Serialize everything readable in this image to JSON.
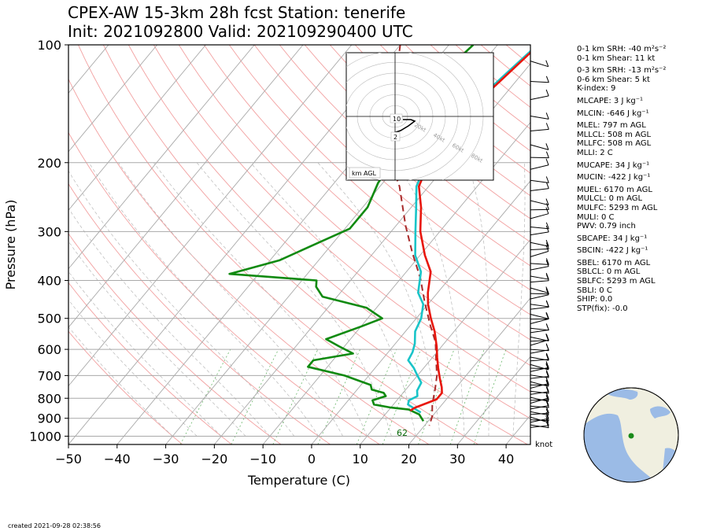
{
  "title_line1": "CPEX-AW 15-3km  28h fcst  Station: tenerife",
  "title_line2": "Init: 2021092800  Valid: 202109290400 UTC",
  "created": "created 2021-09-28 02:38:56",
  "barb_unit": "knot",
  "hodograph": {
    "rings": [
      "20kt",
      "40kt",
      "60kt",
      "80kt"
    ],
    "height_labels": [
      "10",
      "2"
    ],
    "legend": "km AGL"
  },
  "indices": [
    {
      "text": "0-1 km SRH: -40 m²s⁻²",
      "gap": false
    },
    {
      "text": "0-1 km Shear: 11 kt",
      "gap": false
    },
    {
      "text": "0-3 km SRH: -13 m²s⁻²",
      "gap": true
    },
    {
      "text": "0-6 km Shear: 5 kt",
      "gap": false
    },
    {
      "text": "K-index: 9",
      "gap": false
    },
    {
      "text": "MLCAPE: 3 J kg⁻¹",
      "gap": true
    },
    {
      "text": "MLCIN: -646 J kg⁻¹",
      "gap": true
    },
    {
      "text": "MLEL: 797 m AGL",
      "gap": true
    },
    {
      "text": "MLLCL: 508 m AGL",
      "gap": false
    },
    {
      "text": "MLLFC: 508 m AGL",
      "gap": false
    },
    {
      "text": "MLLI: 2 C",
      "gap": false
    },
    {
      "text": "MUCAPE: 34 J kg⁻¹",
      "gap": true
    },
    {
      "text": "MUCIN: -422 J kg⁻¹",
      "gap": true
    },
    {
      "text": "MUEL: 6170 m AGL",
      "gap": true
    },
    {
      "text": "MULCL: 0 m AGL",
      "gap": false
    },
    {
      "text": "MULFC: 5293 m AGL",
      "gap": false
    },
    {
      "text": "MULI: 0 C",
      "gap": false
    },
    {
      "text": "PWV: 0.79 inch",
      "gap": false
    },
    {
      "text": "SBCAPE: 34 J kg⁻¹",
      "gap": true
    },
    {
      "text": "SBCIN: -422 J kg⁻¹",
      "gap": true
    },
    {
      "text": "SBEL: 6170 m AGL",
      "gap": true
    },
    {
      "text": "SBLCL: 0 m AGL",
      "gap": false
    },
    {
      "text": "SBLFC: 5293 m AGL",
      "gap": false
    },
    {
      "text": "SBLI: 0 C",
      "gap": false
    },
    {
      "text": "SHIP: 0.0",
      "gap": false
    },
    {
      "text": "STP(fix): -0.0",
      "gap": false
    }
  ],
  "chart_data": {
    "type": "line",
    "subtype": "skew-T log-P",
    "xlabel": "Temperature (C)",
    "ylabel": "Pressure (hPa)",
    "xlim": [
      -50,
      45
    ],
    "ylim": [
      1050,
      100
    ],
    "y_scale": "log",
    "x_ticks": [
      -50,
      -40,
      -30,
      -20,
      -10,
      0,
      10,
      20,
      30,
      40
    ],
    "y_ticks": [
      100,
      200,
      300,
      400,
      500,
      600,
      700,
      800,
      900,
      1000
    ],
    "surface_label": "62",
    "colors": {
      "temperature": "#e8160c",
      "dewpoint": "#108a10",
      "virtual_temperature": "#19c4c8",
      "parcel": "#a82a2a"
    },
    "series": [
      {
        "key": "temperature",
        "points": [
          [
            -21.5,
            100
          ],
          [
            -24,
            135
          ],
          [
            -24.5,
            170
          ],
          [
            -24,
            200
          ],
          [
            -22,
            230
          ],
          [
            -18,
            260
          ],
          [
            -14,
            300
          ],
          [
            -9,
            345
          ],
          [
            -5,
            380
          ],
          [
            -2,
            430
          ],
          [
            0,
            460
          ],
          [
            3,
            500
          ],
          [
            6,
            540
          ],
          [
            9,
            590
          ],
          [
            11,
            630
          ],
          [
            13,
            670
          ],
          [
            15,
            710
          ],
          [
            17,
            750
          ],
          [
            18,
            775
          ],
          [
            18,
            805
          ],
          [
            15,
            845
          ],
          [
            14.5,
            860
          ]
        ]
      },
      {
        "key": "dewpoint",
        "points": [
          [
            -35,
            100
          ],
          [
            -36.5,
            120
          ],
          [
            -37,
            140
          ],
          [
            -35,
            160
          ],
          [
            -32,
            180
          ],
          [
            -31.5,
            200
          ],
          [
            -31,
            225
          ],
          [
            -29,
            260
          ],
          [
            -29,
            295
          ],
          [
            -33,
            320
          ],
          [
            -38,
            355
          ],
          [
            -46,
            385
          ],
          [
            -27,
            400
          ],
          [
            -26,
            415
          ],
          [
            -23,
            440
          ],
          [
            -12,
            470
          ],
          [
            -7,
            500
          ],
          [
            -10,
            525
          ],
          [
            -15,
            565
          ],
          [
            -11,
            590
          ],
          [
            -7,
            615
          ],
          [
            -14,
            640
          ],
          [
            -14,
            665
          ],
          [
            -5,
            700
          ],
          [
            2,
            740
          ],
          [
            3,
            760
          ],
          [
            6,
            775
          ],
          [
            7,
            790
          ],
          [
            5,
            810
          ],
          [
            6,
            830
          ],
          [
            10,
            845
          ],
          [
            14,
            855
          ],
          [
            17,
            880
          ],
          [
            19,
            915
          ]
        ]
      },
      {
        "key": "virtual_temperature",
        "points": [
          [
            -21.8,
            100
          ],
          [
            -24.5,
            135
          ],
          [
            -25,
            170
          ],
          [
            -24.5,
            200
          ],
          [
            -22.5,
            230
          ],
          [
            -19,
            260
          ],
          [
            -15,
            300
          ],
          [
            -11,
            345
          ],
          [
            -7,
            380
          ],
          [
            -4,
            430
          ],
          [
            -1,
            460
          ],
          [
            1,
            500
          ],
          [
            2,
            540
          ],
          [
            4,
            580
          ],
          [
            5,
            610
          ],
          [
            5.5,
            640
          ],
          [
            8,
            670
          ],
          [
            10,
            700
          ],
          [
            12,
            730
          ],
          [
            12.5,
            765
          ],
          [
            13.5,
            790
          ],
          [
            12.5,
            810
          ],
          [
            13,
            830
          ],
          [
            15,
            850
          ],
          [
            17,
            870
          ]
        ]
      },
      {
        "key": "parcel",
        "dashed": true,
        "points": [
          [
            -50,
            100
          ],
          [
            -35,
            185
          ],
          [
            -26,
            230
          ],
          [
            -18,
            290
          ],
          [
            -12,
            340
          ],
          [
            -6,
            395
          ],
          [
            -1,
            455
          ],
          [
            4,
            520
          ],
          [
            8,
            575
          ],
          [
            11,
            635
          ],
          [
            14,
            700
          ],
          [
            16,
            760
          ],
          [
            18,
            830
          ],
          [
            20,
            890
          ],
          [
            21,
            940
          ]
        ]
      }
    ]
  }
}
